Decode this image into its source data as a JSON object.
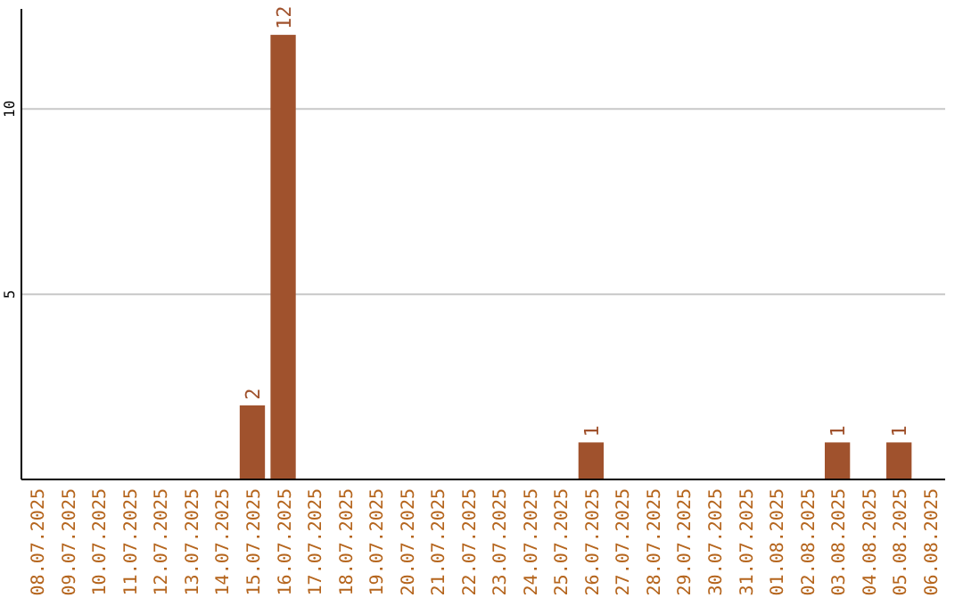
{
  "chart_data": {
    "type": "bar",
    "categories": [
      "08.07.2025",
      "09.07.2025",
      "10.07.2025",
      "11.07.2025",
      "12.07.2025",
      "13.07.2025",
      "14.07.2025",
      "15.07.2025",
      "16.07.2025",
      "17.07.2025",
      "18.07.2025",
      "19.07.2025",
      "20.07.2025",
      "21.07.2025",
      "22.07.2025",
      "23.07.2025",
      "24.07.2025",
      "25.07.2025",
      "26.07.2025",
      "27.07.2025",
      "28.07.2025",
      "29.07.2025",
      "30.07.2025",
      "31.07.2025",
      "01.08.2025",
      "02.08.2025",
      "03.08.2025",
      "04.08.2025",
      "05.08.2025",
      "06.08.2025"
    ],
    "values": [
      0,
      0,
      0,
      0,
      0,
      0,
      0,
      2,
      12,
      0,
      0,
      0,
      0,
      0,
      0,
      0,
      0,
      0,
      1,
      0,
      0,
      0,
      0,
      0,
      0,
      0,
      1,
      0,
      1,
      0
    ],
    "value_labels": [
      null,
      null,
      null,
      null,
      null,
      null,
      null,
      "2",
      "12",
      null,
      null,
      null,
      null,
      null,
      null,
      null,
      null,
      null,
      "1",
      null,
      null,
      null,
      null,
      null,
      null,
      null,
      "1",
      null,
      "1",
      null
    ],
    "color": "#a0522d",
    "ylim": [
      0,
      12.7
    ],
    "yticks": [
      {
        "value": 5,
        "label": "5"
      },
      {
        "value": 10,
        "label": "10"
      }
    ],
    "grid": "y"
  }
}
